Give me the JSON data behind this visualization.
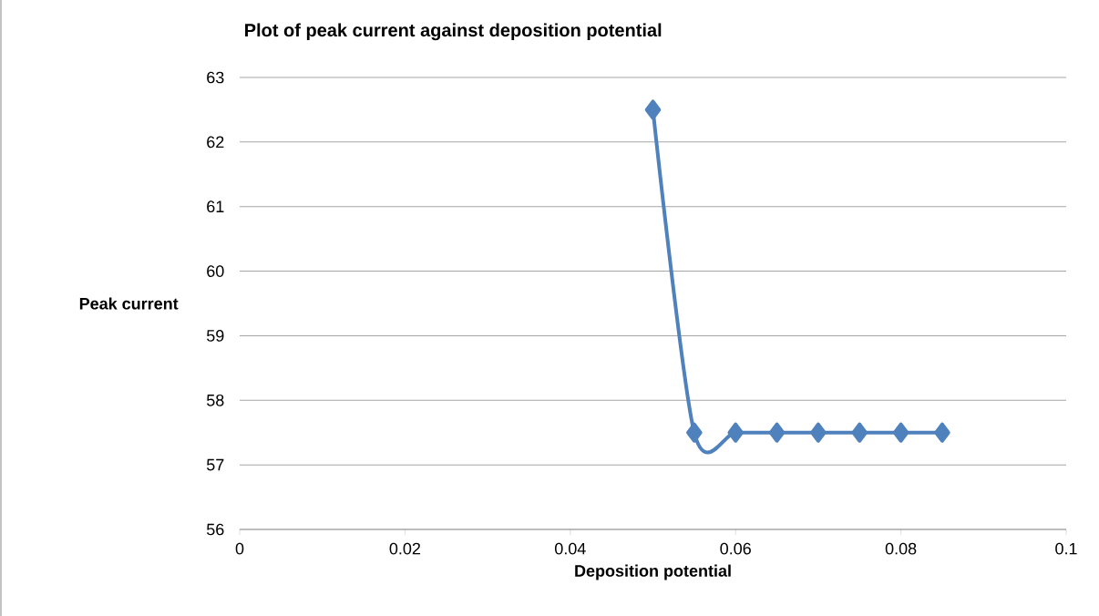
{
  "chart_data": {
    "type": "line",
    "title": "Plot of peak current against deposition potential",
    "xlabel": "Deposition potential",
    "ylabel": "Peak current",
    "x": [
      0.05,
      0.055,
      0.06,
      0.065,
      0.07,
      0.075,
      0.08,
      0.085
    ],
    "series": [
      {
        "color": "#4f81bd",
        "values": [
          62.5,
          57.5,
          57.5,
          57.5,
          57.5,
          57.5,
          57.5,
          57.5
        ]
      }
    ],
    "xlim": [
      0,
      0.1
    ],
    "xticks": [
      0,
      0.02,
      0.04,
      0.06,
      0.08,
      0.1
    ],
    "ylim": [
      56,
      63
    ],
    "yticks": [
      56,
      57,
      58,
      59,
      60,
      61,
      62,
      63
    ],
    "grid": "y",
    "marker": "diamond",
    "line_style": "solid"
  }
}
